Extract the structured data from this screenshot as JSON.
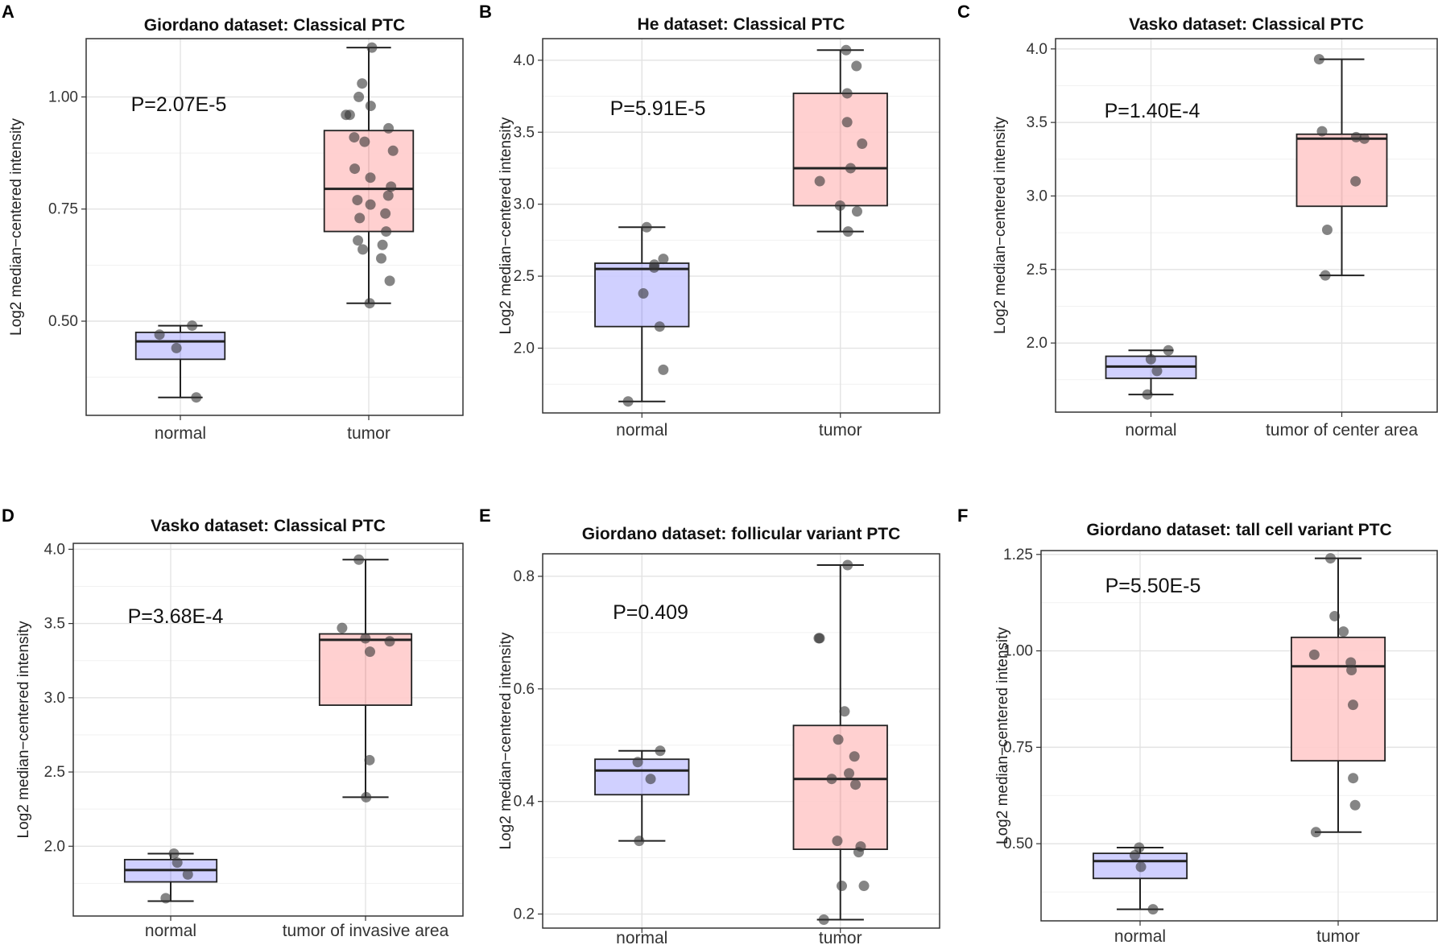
{
  "figure": {
    "description_labels": [
      "A",
      "B",
      "C",
      "D",
      "E",
      "F"
    ]
  },
  "chart_data": [
    {
      "panel": "A",
      "type": "box",
      "title": "Giordano dataset: Classical PTC",
      "ylabel": "Log2 median−centered intensity",
      "xlabel": "",
      "ylim": [
        0.29,
        1.13
      ],
      "yticks": [
        0.5,
        0.75,
        1.0
      ],
      "ytick_labels": [
        "0.50",
        "0.75",
        "1.00"
      ],
      "pvalue": "P=2.07E-5",
      "categories": [
        "normal",
        "tumor"
      ],
      "colors": [
        "#ccccff",
        "#ffcccc"
      ],
      "boxes": [
        {
          "name": "normal",
          "whisker_low": 0.33,
          "q1": 0.415,
          "median": 0.455,
          "q3": 0.475,
          "whisker_high": 0.49,
          "points": [
            0.49,
            0.47,
            0.44,
            0.33
          ]
        },
        {
          "name": "tumor",
          "whisker_low": 0.54,
          "q1": 0.7,
          "median": 0.795,
          "q3": 0.925,
          "whisker_high": 1.11,
          "points": [
            1.11,
            1.03,
            1.0,
            0.98,
            0.96,
            0.96,
            0.93,
            0.91,
            0.9,
            0.88,
            0.84,
            0.82,
            0.8,
            0.78,
            0.77,
            0.76,
            0.74,
            0.73,
            0.7,
            0.68,
            0.67,
            0.66,
            0.64,
            0.59,
            0.54
          ]
        }
      ]
    },
    {
      "panel": "B",
      "type": "box",
      "title": "He dataset: Classical PTC",
      "ylabel": "Log2 median−centered intensity",
      "xlabel": "",
      "ylim": [
        1.55,
        4.15
      ],
      "yticks": [
        2.0,
        2.5,
        3.0,
        3.5,
        4.0
      ],
      "ytick_labels": [
        "2.0",
        "2.5",
        "3.0",
        "3.5",
        "4.0"
      ],
      "pvalue": "P=5.91E-5",
      "categories": [
        "normal",
        "tumor"
      ],
      "colors": [
        "#ccccff",
        "#ffcccc"
      ],
      "boxes": [
        {
          "name": "normal",
          "whisker_low": 1.63,
          "q1": 2.15,
          "median": 2.55,
          "q3": 2.59,
          "whisker_high": 2.84,
          "points": [
            2.84,
            2.62,
            2.58,
            2.56,
            2.38,
            2.15,
            1.85,
            1.63
          ]
        },
        {
          "name": "tumor",
          "whisker_low": 2.81,
          "q1": 2.99,
          "median": 3.25,
          "q3": 3.77,
          "whisker_high": 4.07,
          "points": [
            4.07,
            3.96,
            3.77,
            3.57,
            3.42,
            3.25,
            3.16,
            2.99,
            2.95,
            2.81
          ]
        }
      ]
    },
    {
      "panel": "C",
      "type": "box",
      "title": "Vasko dataset: Classical PTC",
      "ylabel": "Log2 median−centered intensity",
      "xlabel": "",
      "ylim": [
        1.53,
        4.07
      ],
      "yticks": [
        2.0,
        2.5,
        3.0,
        3.5,
        4.0
      ],
      "ytick_labels": [
        "2.0",
        "2.5",
        "3.0",
        "3.5",
        "4.0"
      ],
      "pvalue": "P=1.40E-4",
      "categories": [
        "normal",
        "tumor of center area"
      ],
      "colors": [
        "#ccccff",
        "#ffcccc"
      ],
      "boxes": [
        {
          "name": "normal",
          "whisker_low": 1.65,
          "q1": 1.76,
          "median": 1.84,
          "q3": 1.91,
          "whisker_high": 1.95,
          "points": [
            1.95,
            1.89,
            1.81,
            1.65
          ]
        },
        {
          "name": "tumor of center area",
          "whisker_low": 2.46,
          "q1": 2.93,
          "median": 3.39,
          "q3": 3.42,
          "whisker_high": 3.93,
          "points": [
            3.93,
            3.44,
            3.4,
            3.39,
            3.1,
            2.77,
            2.46
          ]
        }
      ]
    },
    {
      "panel": "D",
      "type": "box",
      "title": "Vasko dataset: Classical PTC",
      "ylabel": "Log2 median−centered intensity",
      "xlabel": "",
      "ylim": [
        1.53,
        4.04
      ],
      "yticks": [
        2.0,
        2.5,
        3.0,
        3.5,
        4.0
      ],
      "ytick_labels": [
        "2.0",
        "2.5",
        "3.0",
        "3.5",
        "4.0"
      ],
      "pvalue": "P=3.68E-4",
      "categories": [
        "normal",
        "tumor of invasive area"
      ],
      "colors": [
        "#ccccff",
        "#ffcccc"
      ],
      "boxes": [
        {
          "name": "normal",
          "whisker_low": 1.63,
          "q1": 1.76,
          "median": 1.84,
          "q3": 1.91,
          "whisker_high": 1.95,
          "points": [
            1.95,
            1.89,
            1.81,
            1.65
          ]
        },
        {
          "name": "tumor of invasive area",
          "whisker_low": 2.33,
          "q1": 2.95,
          "median": 3.39,
          "q3": 3.43,
          "whisker_high": 3.93,
          "points": [
            3.93,
            3.47,
            3.4,
            3.38,
            3.31,
            2.58,
            2.33
          ]
        }
      ]
    },
    {
      "panel": "E",
      "type": "box",
      "title": "Giordano dataset: follicular variant PTC",
      "ylabel": "Log2 median−centered intensity",
      "xlabel": "",
      "ylim": [
        0.175,
        0.84
      ],
      "yticks": [
        0.2,
        0.4,
        0.6,
        0.8
      ],
      "ytick_labels": [
        "0.2",
        "0.4",
        "0.6",
        "0.8"
      ],
      "pvalue": "P=0.409",
      "categories": [
        "normal",
        "tumor"
      ],
      "colors": [
        "#ccccff",
        "#ffcccc"
      ],
      "boxes": [
        {
          "name": "normal",
          "whisker_low": 0.33,
          "q1": 0.412,
          "median": 0.455,
          "q3": 0.475,
          "whisker_high": 0.49,
          "points": [
            0.49,
            0.47,
            0.44,
            0.33
          ]
        },
        {
          "name": "tumor",
          "whisker_low": 0.19,
          "q1": 0.315,
          "median": 0.44,
          "q3": 0.535,
          "whisker_high": 0.82,
          "points": [
            0.82,
            0.69,
            0.69,
            0.56,
            0.51,
            0.48,
            0.45,
            0.44,
            0.43,
            0.33,
            0.32,
            0.31,
            0.25,
            0.25,
            0.19
          ]
        }
      ]
    },
    {
      "panel": "F",
      "type": "box",
      "title": "Giordano dataset: tall cell variant PTC",
      "ylabel": "Log2 median−centered intensity",
      "xlabel": "",
      "ylim": [
        0.3,
        1.26
      ],
      "yticks": [
        0.5,
        0.75,
        1.0,
        1.25
      ],
      "ytick_labels": [
        "0.50",
        "0.75",
        "1.00",
        "1.25"
      ],
      "pvalue": "P=5.50E-5",
      "categories": [
        "normal",
        "tumor"
      ],
      "colors": [
        "#ccccff",
        "#ffcccc"
      ],
      "boxes": [
        {
          "name": "normal",
          "whisker_low": 0.33,
          "q1": 0.41,
          "median": 0.455,
          "q3": 0.475,
          "whisker_high": 0.49,
          "points": [
            0.49,
            0.47,
            0.44,
            0.33
          ]
        },
        {
          "name": "tumor",
          "whisker_low": 0.53,
          "q1": 0.715,
          "median": 0.96,
          "q3": 1.035,
          "whisker_high": 1.24,
          "points": [
            1.24,
            1.09,
            1.05,
            0.99,
            0.97,
            0.95,
            0.86,
            0.67,
            0.6,
            0.53
          ]
        }
      ]
    }
  ]
}
